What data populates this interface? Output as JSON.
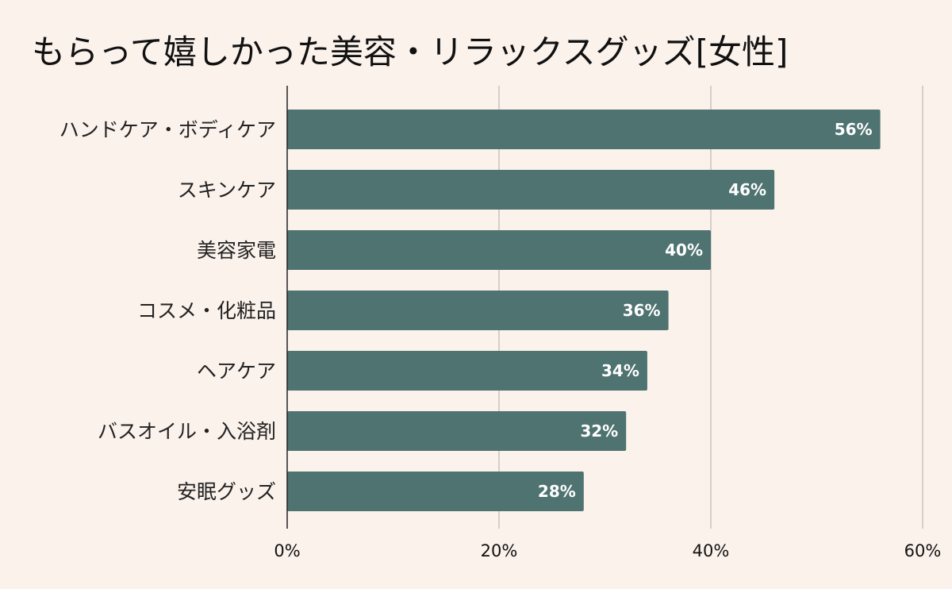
{
  "chart_data": {
    "type": "bar",
    "orientation": "horizontal",
    "title": "もらって嬉しかった美容・リラックスグッズ[女性]",
    "categories": [
      "ハンドケア・ボディケア",
      "スキンケア",
      "美容家電",
      "コスメ・化粧品",
      "ヘアケア",
      "バスオイル・入浴剤",
      "安眠グッズ"
    ],
    "values": [
      56,
      46,
      40,
      36,
      34,
      32,
      28
    ],
    "value_labels": [
      "56%",
      "46%",
      "40%",
      "36%",
      "34%",
      "32%",
      "28%"
    ],
    "xlim": [
      0,
      60
    ],
    "x_ticks": [
      0,
      20,
      40,
      60
    ],
    "x_tick_labels": [
      "0%",
      "20%",
      "40%",
      "60%"
    ],
    "xlabel": "",
    "ylabel": "",
    "grid": true,
    "bar_color": "#4e7370",
    "grid_color": "#c9c2bd",
    "axis_color": "#222222",
    "background_color": "#fbf2ec"
  }
}
